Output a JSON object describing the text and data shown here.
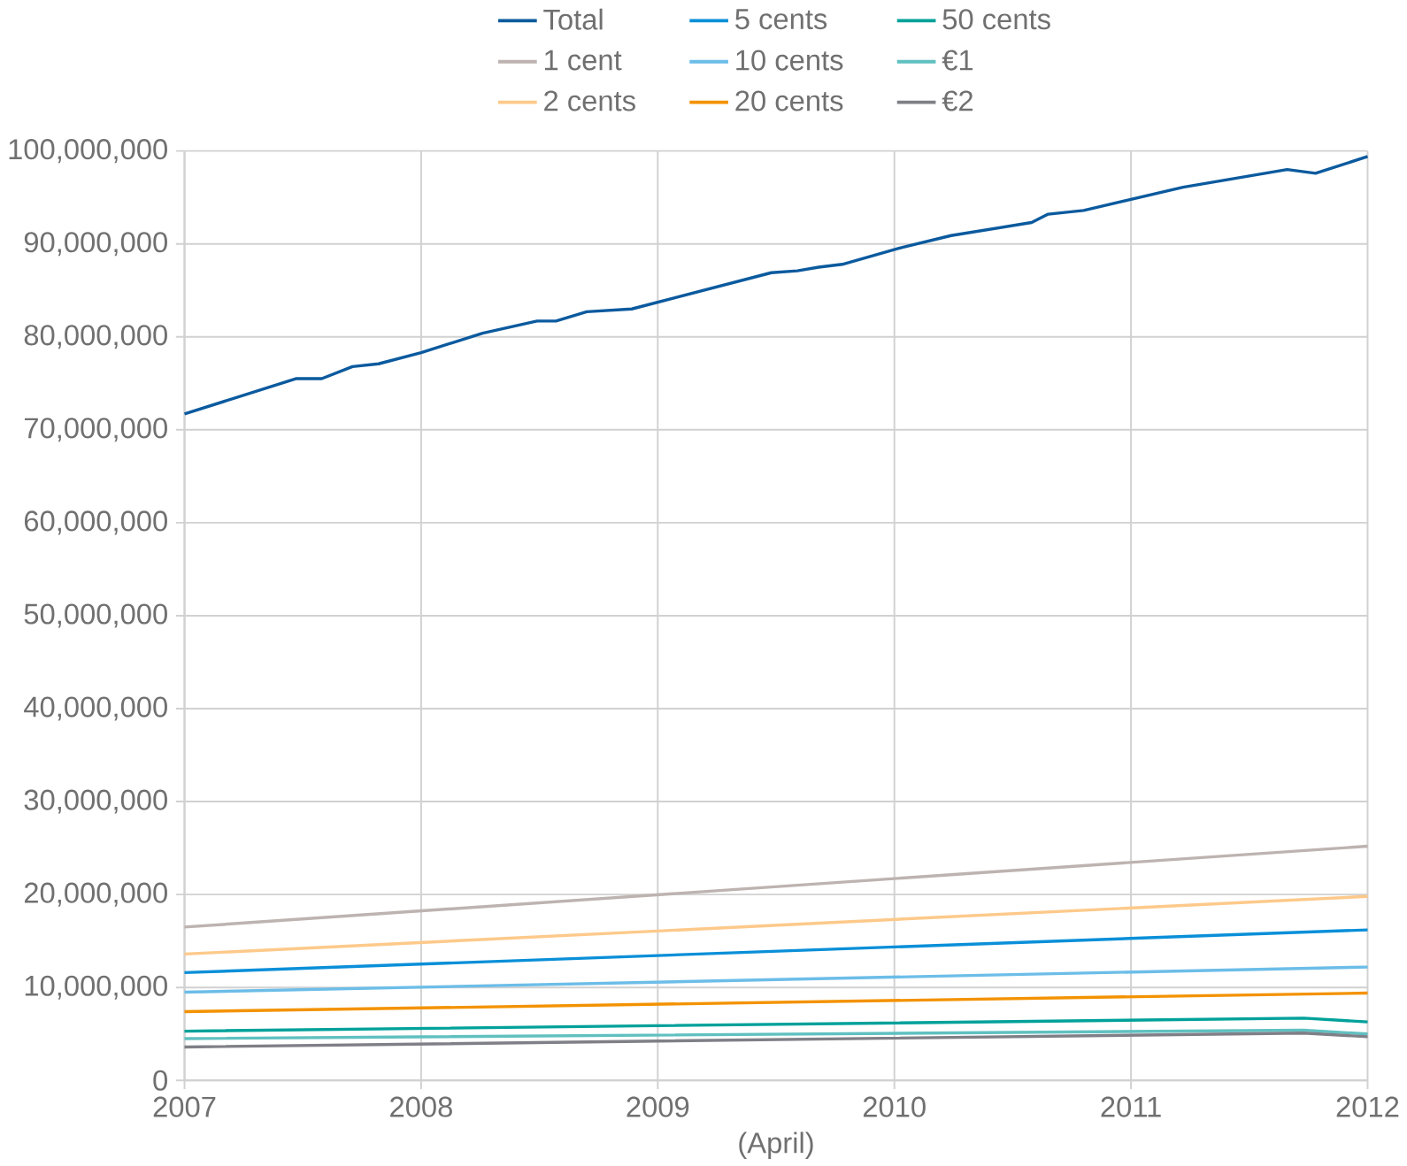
{
  "chart_data": {
    "type": "line",
    "xlabel": "(April)",
    "xlim": [
      2007,
      2012
    ],
    "xticks": [
      2007,
      2008,
      2009,
      2010,
      2011,
      2012
    ],
    "ylim": [
      0,
      100000000
    ],
    "yticks": [
      {
        "value": 0,
        "label": "0"
      },
      {
        "value": 10000000,
        "label": "10,000,000"
      },
      {
        "value": 20000000,
        "label": "20,000,000"
      },
      {
        "value": 30000000,
        "label": "30,000,000"
      },
      {
        "value": 40000000,
        "label": "40,000,000"
      },
      {
        "value": 50000000,
        "label": "50,000,000"
      },
      {
        "value": 60000000,
        "label": "60,000,000"
      },
      {
        "value": 70000000,
        "label": "70,000,000"
      },
      {
        "value": 80000000,
        "label": "80,000,000"
      },
      {
        "value": 90000000,
        "label": "90,000,000"
      },
      {
        "value": 100000000,
        "label": "100,000,000"
      }
    ],
    "grid": true,
    "legend": "top",
    "marker": "none",
    "line_style": "solid",
    "series": [
      {
        "name": "Total",
        "color": "#0b5a9e",
        "x": [
          2007.0,
          2007.47,
          2007.58,
          2007.71,
          2007.82,
          2008.0,
          2008.26,
          2008.49,
          2008.57,
          2008.7,
          2008.89,
          2009.48,
          2009.59,
          2009.68,
          2009.78,
          2010.03,
          2010.24,
          2010.58,
          2010.65,
          2010.8,
          2011.22,
          2011.66,
          2011.78,
          2012.0
        ],
        "values": [
          71700000,
          75500000,
          75500000,
          76800000,
          77100000,
          78300000,
          80400000,
          81700000,
          81700000,
          82700000,
          83000000,
          86900000,
          87100000,
          87500000,
          87800000,
          89600000,
          90900000,
          92300000,
          93200000,
          93600000,
          96100000,
          98000000,
          97600000,
          99400000
        ]
      },
      {
        "name": "5 cents",
        "color": "#0a8fd8",
        "x": [
          2007,
          2012
        ],
        "values": [
          11600000,
          16200000
        ]
      },
      {
        "name": "50 cents",
        "color": "#00a19a",
        "x": [
          2007,
          2011.73,
          2012
        ],
        "values": [
          5300000,
          6700000,
          6300000
        ]
      },
      {
        "name": "1 cent",
        "color": "#bdb3b0",
        "x": [
          2007,
          2012
        ],
        "values": [
          16500000,
          25200000
        ]
      },
      {
        "name": "10 cents",
        "color": "#6cbde8",
        "x": [
          2007,
          2012
        ],
        "values": [
          9500000,
          12200000
        ]
      },
      {
        "name": "€1",
        "color": "#60c0c0",
        "x": [
          2007,
          2011.73,
          2012
        ],
        "values": [
          4500000,
          5400000,
          5000000
        ]
      },
      {
        "name": "2 cents",
        "color": "#fdc98a",
        "x": [
          2007,
          2012
        ],
        "values": [
          13600000,
          19800000
        ]
      },
      {
        "name": "20 cents",
        "color": "#f39200",
        "x": [
          2007,
          2012
        ],
        "values": [
          7400000,
          9400000
        ]
      },
      {
        "name": "€2",
        "color": "#7f7f87",
        "x": [
          2007,
          2011.73,
          2012
        ],
        "values": [
          3600000,
          5100000,
          4700000
        ]
      }
    ]
  }
}
